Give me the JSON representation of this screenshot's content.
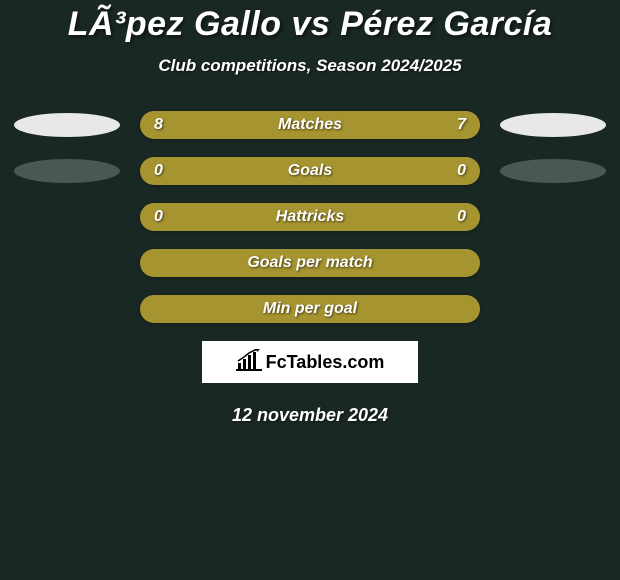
{
  "title": "LÃ³pez Gallo vs Pérez García",
  "subtitle": "Club competitions, Season 2024/2025",
  "date": "12 november 2024",
  "logo_text": "FcTables.com",
  "colors": {
    "background": "#1a2825",
    "bar_fill": "#a69430",
    "ellipse_left_1": "#e8e8e8",
    "ellipse_right_1": "#e8e8e8",
    "ellipse_left_2": "#4a5855",
    "ellipse_right_2": "#4a5855",
    "text": "#ffffff",
    "logo_bg": "#ffffff",
    "logo_text": "#000000"
  },
  "rows": [
    {
      "left_value": "8",
      "label": "Matches",
      "right_value": "7",
      "show_ellipses": true,
      "ellipse_left_color": "#e8e8e8",
      "ellipse_right_color": "#e8e8e8",
      "bar_color": "#a69430"
    },
    {
      "left_value": "0",
      "label": "Goals",
      "right_value": "0",
      "show_ellipses": true,
      "ellipse_left_color": "#4a5855",
      "ellipse_right_color": "#4a5855",
      "bar_color": "#a69430"
    },
    {
      "left_value": "0",
      "label": "Hattricks",
      "right_value": "0",
      "show_ellipses": false,
      "bar_color": "#a69430"
    },
    {
      "left_value": "",
      "label": "Goals per match",
      "right_value": "",
      "show_ellipses": false,
      "bar_color": "#a69430"
    },
    {
      "left_value": "",
      "label": "Min per goal",
      "right_value": "",
      "show_ellipses": false,
      "bar_color": "#a69430"
    }
  ]
}
